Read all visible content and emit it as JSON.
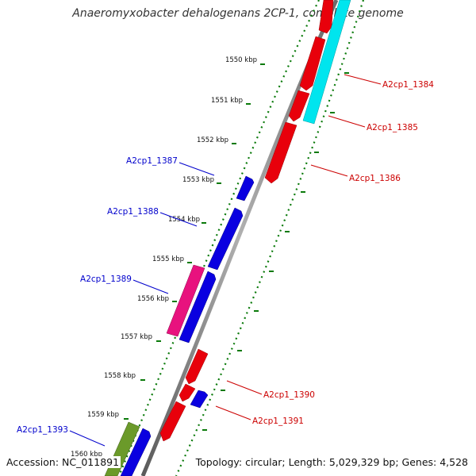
{
  "header": {
    "title": "Anaeromyxobacter dehalogenans 2CP-1, complete genome"
  },
  "footer": {
    "accession": "Accession: NC_011891",
    "summary": "Topology: circular; Length: 5,029,329 bp; Genes: 4,528"
  },
  "colors": {
    "forward_cds": "#e8000b",
    "reverse_cds": "#0a00e0",
    "forward_label": "#cc0000",
    "reverse_label": "#0000cc",
    "rrna": "#00e5ee",
    "highlight_magenta": "#e8127e",
    "highlight_olive": "#6b9a2a",
    "backbone": "#888888",
    "tick": "#0a7a0a"
  },
  "ticks": [
    "1550 kbp",
    "1551 kbp",
    "1552 kbp",
    "1553 kbp",
    "1554 kbp",
    "1555 kbp",
    "1556 kbp",
    "1557 kbp",
    "1558 kbp",
    "1559 kbp",
    "1560 kbp"
  ],
  "gene_labels_right": [
    "A2cp1_1384",
    "A2cp1_1385",
    "A2cp1_1386",
    "A2cp1_1390",
    "A2cp1_1391"
  ],
  "gene_labels_left": [
    "A2cp1_1387",
    "A2cp1_1388",
    "A2cp1_1389",
    "A2cp1_1393"
  ]
}
